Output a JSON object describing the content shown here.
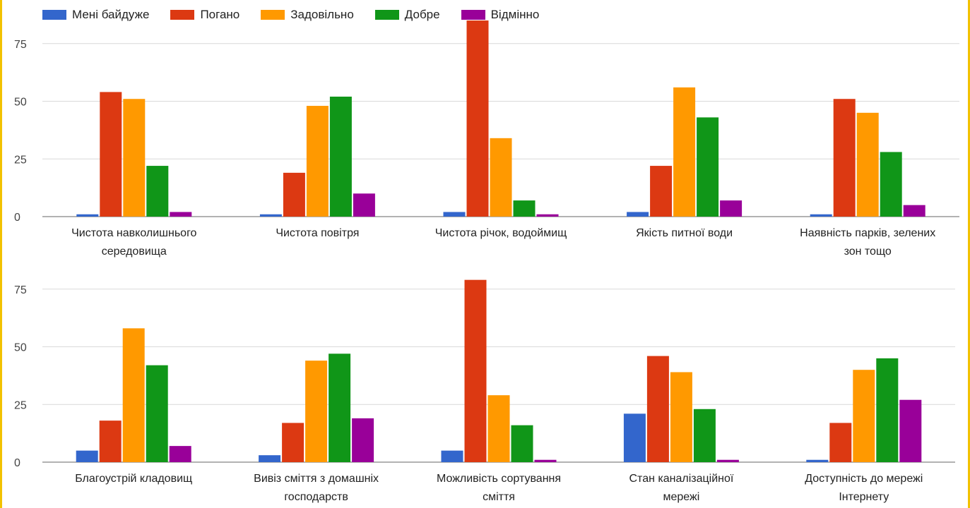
{
  "chart_data": [
    {
      "type": "bar",
      "categories": [
        [
          "Чистота навколишнього",
          "середовища"
        ],
        [
          "Чистота повітря"
        ],
        [
          "Чистота річок, водоймищ"
        ],
        [
          "Якість питної води"
        ],
        [
          "Наявність парків, зелених",
          "зон тощо"
        ]
      ],
      "series": [
        {
          "name": "Мені байдуже",
          "color": "#3366cc",
          "values": [
            1,
            1,
            2,
            2,
            1
          ]
        },
        {
          "name": "Погано",
          "color": "#dc3912",
          "values": [
            54,
            19,
            85,
            22,
            51
          ]
        },
        {
          "name": "Задовільно",
          "color": "#ff9900",
          "values": [
            51,
            48,
            34,
            56,
            45
          ]
        },
        {
          "name": "Добре",
          "color": "#109618",
          "values": [
            22,
            52,
            7,
            43,
            28
          ]
        },
        {
          "name": "Відмінно",
          "color": "#990099",
          "values": [
            2,
            10,
            1,
            7,
            5
          ]
        }
      ],
      "yticks": [
        0,
        25,
        50,
        75
      ],
      "ylim": [
        0,
        85
      ],
      "grid": true,
      "legend_position": "top-left"
    },
    {
      "type": "bar",
      "categories": [
        [
          "Благоустрій кладовищ"
        ],
        [
          "Вивіз сміття з домашніх",
          "господарств"
        ],
        [
          "Можливість сортування",
          "сміття"
        ],
        [
          "Стан каналізаційної",
          "мережі"
        ],
        [
          "Доступність до мережі",
          "Інтернету"
        ]
      ],
      "series": [
        {
          "name": "Мені байдуже",
          "color": "#3366cc",
          "values": [
            5,
            3,
            5,
            21,
            1
          ]
        },
        {
          "name": "Погано",
          "color": "#dc3912",
          "values": [
            18,
            17,
            79,
            46,
            17
          ]
        },
        {
          "name": "Задовільно",
          "color": "#ff9900",
          "values": [
            58,
            44,
            29,
            39,
            40
          ]
        },
        {
          "name": "Добре",
          "color": "#109618",
          "values": [
            42,
            47,
            16,
            23,
            45
          ]
        },
        {
          "name": "Відмінно",
          "color": "#990099",
          "values": [
            7,
            19,
            1,
            1,
            27
          ]
        }
      ],
      "yticks": [
        0,
        25,
        50,
        75
      ],
      "ylim": [
        0,
        80
      ],
      "grid": true
    }
  ]
}
